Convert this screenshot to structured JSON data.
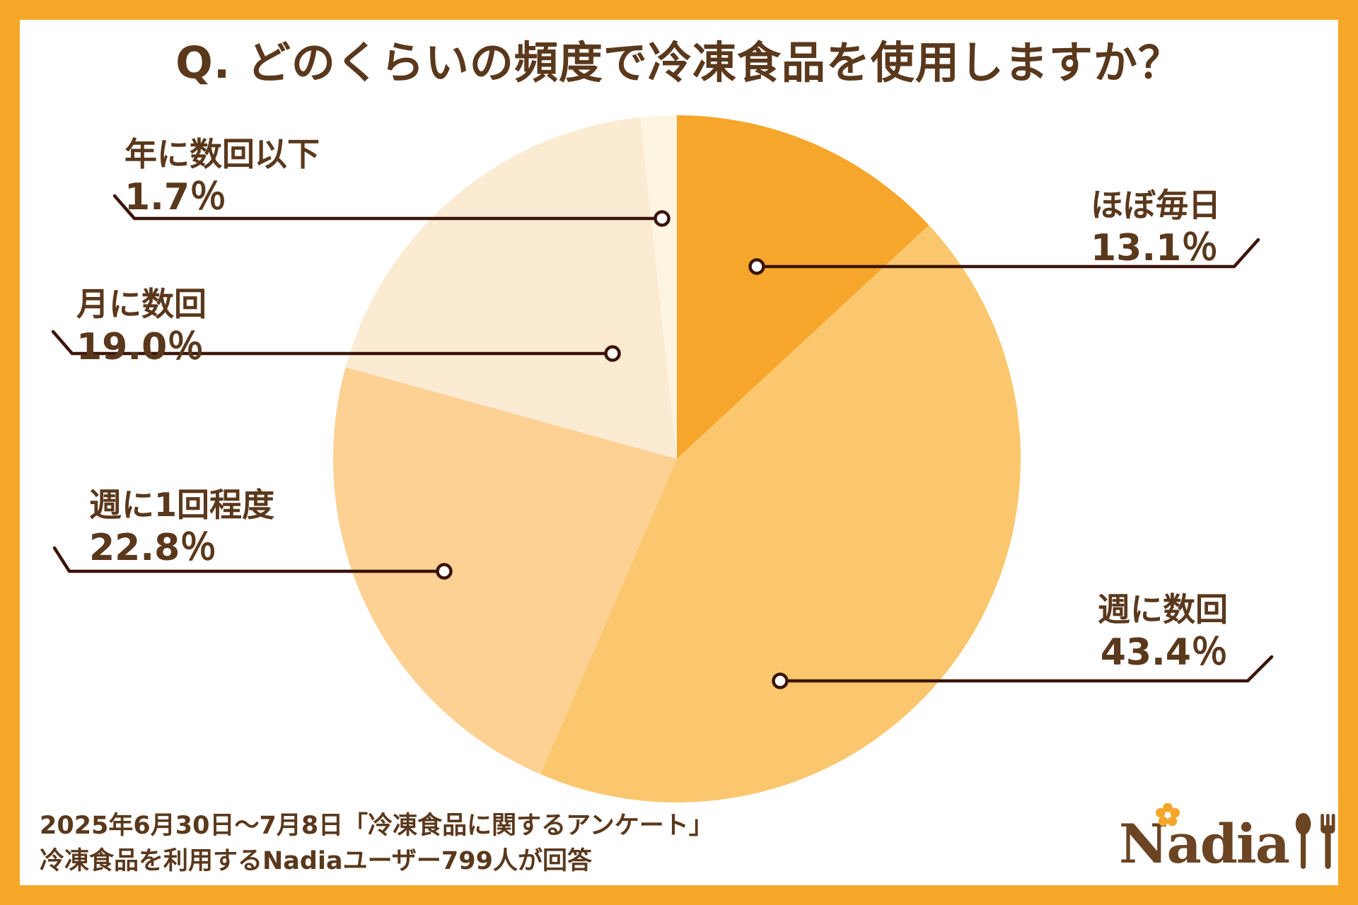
{
  "title": "Q. どのくらいの頻度で冷凍食品を使用しますか？",
  "chart_data": {
    "type": "pie",
    "title": "どのくらいの頻度で冷凍食品を使用しますか？",
    "start_angle_deg": 0,
    "direction": "clockwise",
    "legend_position": "callout-labels",
    "segments": [
      {
        "label": "ほぼ毎日",
        "value": 13.1,
        "pct_label": "13.1％",
        "color": "#F6A62A"
      },
      {
        "label": "週に数回",
        "value": 43.4,
        "pct_label": "43.4％",
        "color": "#FBC76E"
      },
      {
        "label": "週に1回程度",
        "value": 22.8,
        "pct_label": "22.8％",
        "color": "#FCD193"
      },
      {
        "label": "月に数回",
        "value": 19.0,
        "pct_label": "19.0％",
        "color": "#FAEBD2"
      },
      {
        "label": "年に数回以下",
        "value": 1.7,
        "pct_label": "1.7％",
        "color": "#FDF5E2"
      }
    ]
  },
  "footer": {
    "line1": "2025年6月30日〜7月8日「冷凍食品に関するアンケート」",
    "line2": "冷凍食品を利用するNadiaユーザー799人が回答"
  },
  "logo": {
    "brand": "Nadia"
  },
  "colors": {
    "frame": "#F5A728",
    "text": "#5A381C",
    "leader_line": "#3B140B"
  }
}
